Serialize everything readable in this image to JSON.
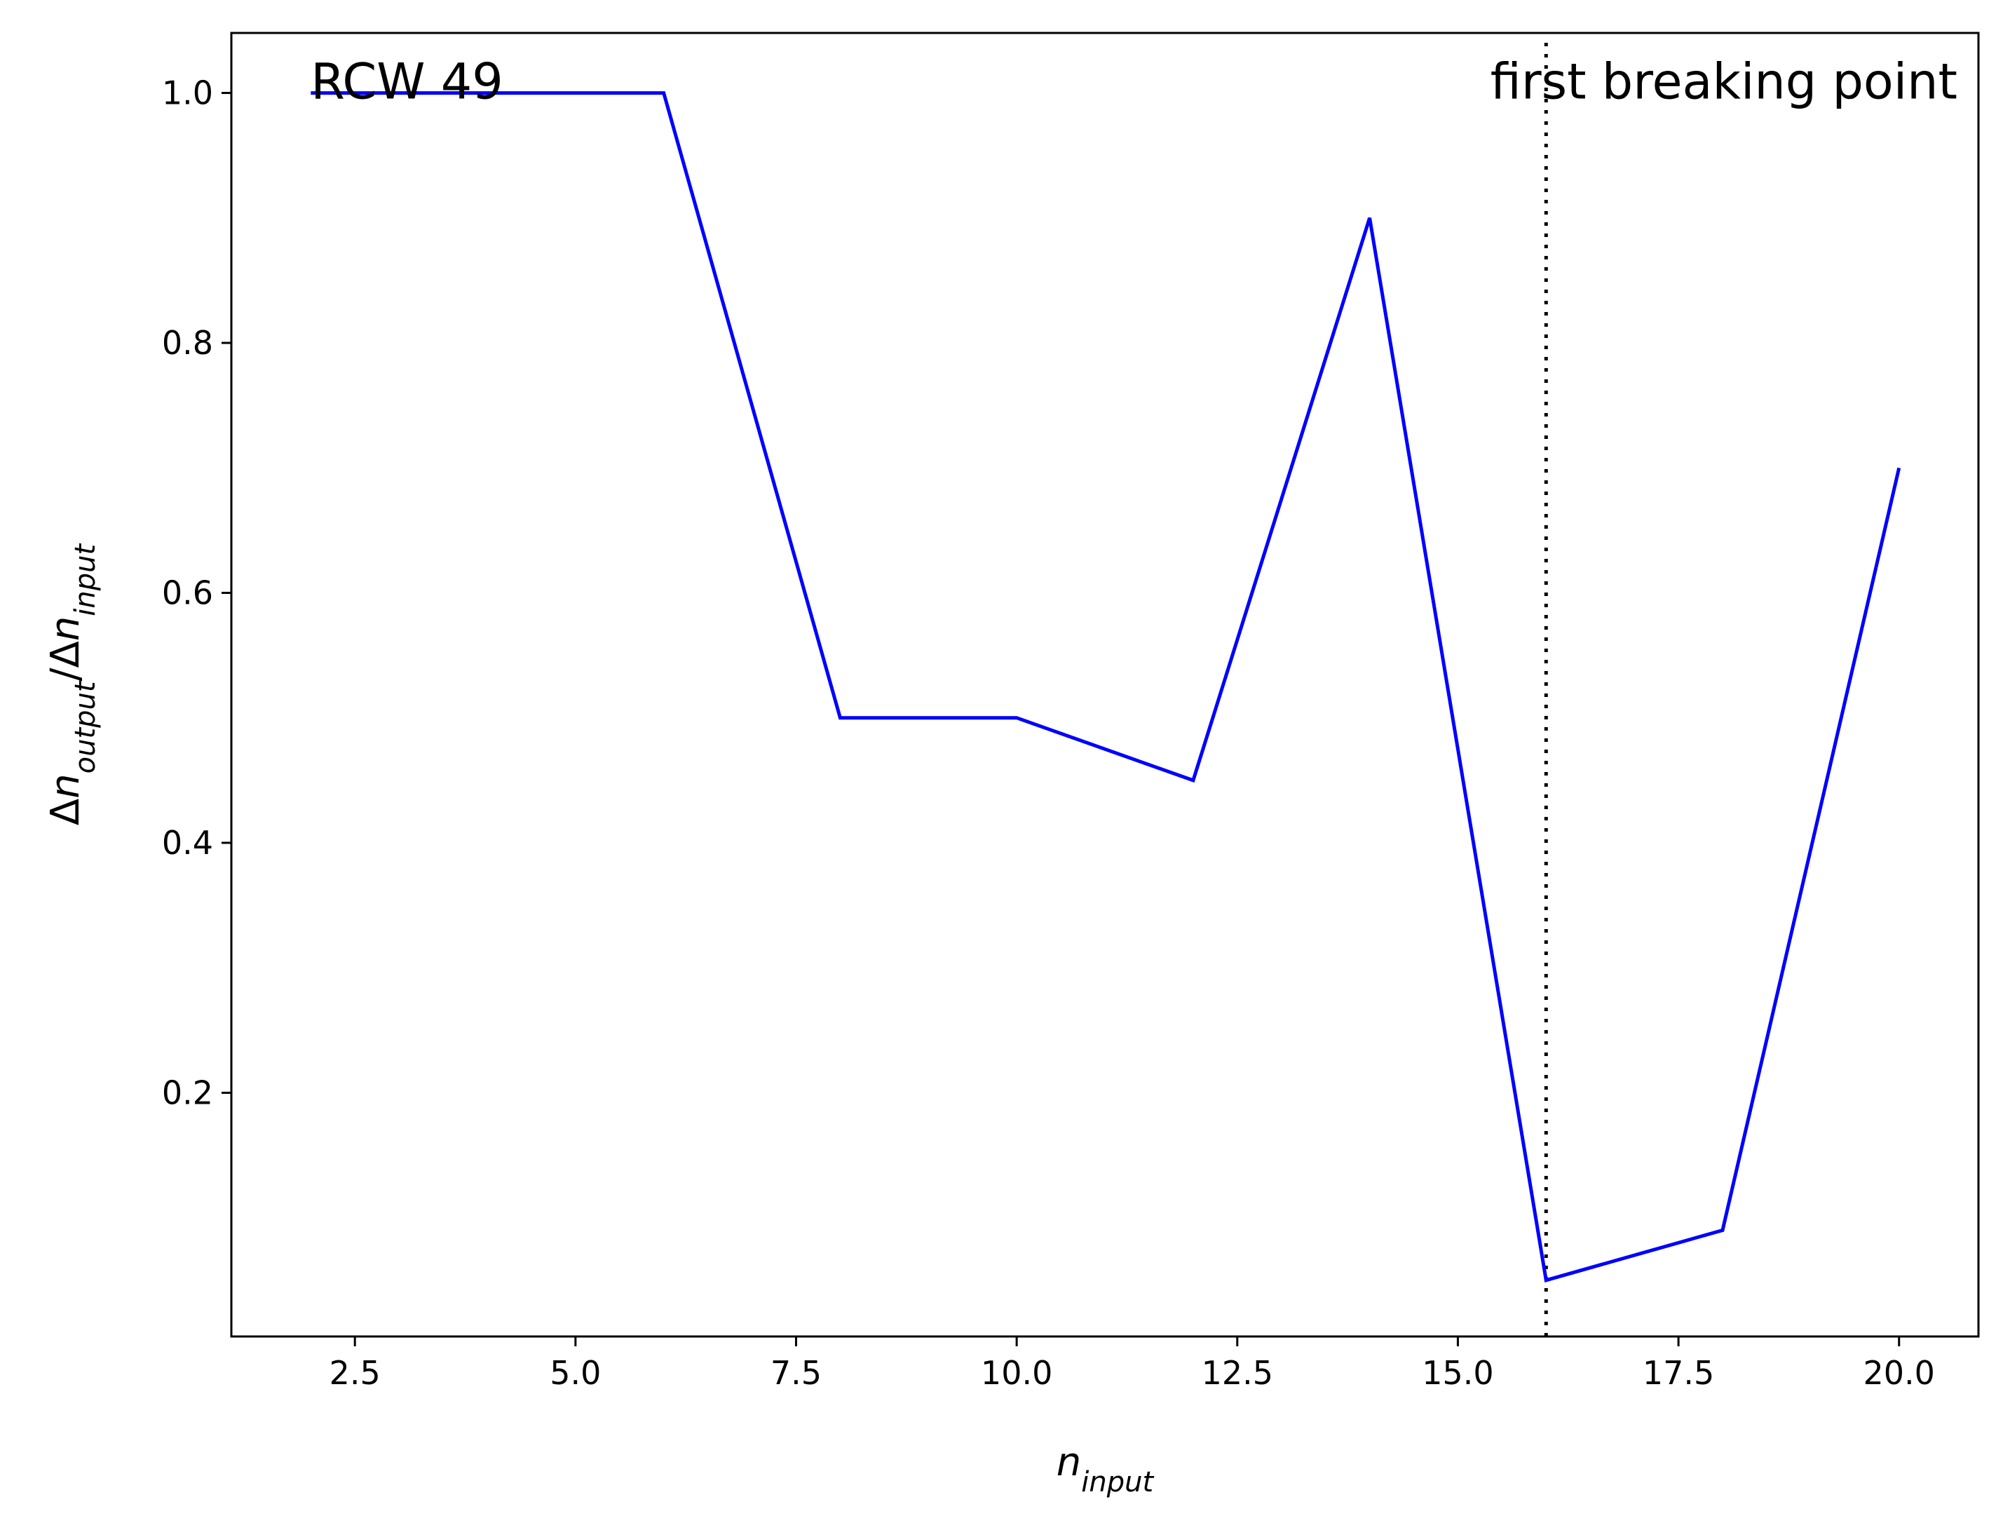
{
  "chart_data": {
    "type": "line",
    "x": [
      2,
      4,
      6,
      8,
      10,
      12,
      14,
      16,
      18,
      20
    ],
    "series": [
      {
        "values": [
          1.0,
          1.0,
          1.0,
          0.5,
          0.5,
          0.45,
          0.9,
          0.05,
          0.09,
          0.7
        ],
        "color": "#0000ff"
      }
    ],
    "xlim": [
      1.1,
      20.9
    ],
    "ylim": [
      0.005,
      1.048
    ],
    "xticks": [
      2.5,
      5.0,
      7.5,
      10.0,
      12.5,
      15.0,
      17.5,
      20.0
    ],
    "xtick_labels": [
      "2.5",
      "5.0",
      "7.5",
      "10.0",
      "12.5",
      "15.0",
      "17.5",
      "20.0"
    ],
    "yticks": [
      0.2,
      0.4,
      0.6,
      0.8,
      1.0
    ],
    "ytick_labels": [
      "0.2",
      "0.4",
      "0.6",
      "0.8",
      "1.0"
    ],
    "xlabel": {
      "base": "n",
      "sub": "input"
    },
    "ylabel": {
      "d1": "Δ",
      "n1": "n",
      "sub1": "output",
      "slash": "/",
      "d2": "Δ",
      "n2": "n",
      "sub2": "input"
    },
    "grid": false,
    "annotations": {
      "top_left": "RCW 49",
      "vline_label": "first breaking point"
    },
    "vline": {
      "x": 16,
      "style": "dotted",
      "color": "#000000"
    }
  }
}
